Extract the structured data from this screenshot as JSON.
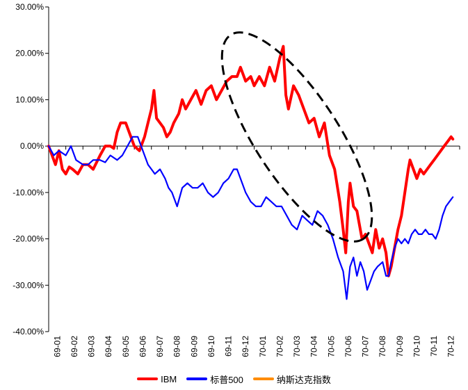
{
  "chart_data": {
    "type": "line",
    "title": "",
    "xlabel": "",
    "ylabel": "",
    "ylim": [
      -0.4,
      0.3
    ],
    "y_ticks": [
      "30.00%",
      "20.00%",
      "10.00%",
      "0.00%",
      "-10.00%",
      "-20.00%",
      "-30.00%",
      "-40.00%"
    ],
    "x_ticks": [
      "69-01",
      "69-02",
      "69-03",
      "69-04",
      "69-05",
      "69-06",
      "69-07",
      "69-08",
      "69-09",
      "69-10",
      "69-11",
      "69-12",
      "70-01",
      "70-02",
      "70-03",
      "70-04",
      "70-05",
      "70-06",
      "70-07",
      "70-08",
      "70-09",
      "70-10",
      "70-11",
      "70-12"
    ],
    "grid": false,
    "legend_position": "bottom",
    "series": [
      {
        "name": "IBM",
        "color": "#FF0000",
        "values": [
          [
            0.0,
            0.0
          ],
          [
            0.2,
            -0.02
          ],
          [
            0.4,
            -0.04
          ],
          [
            0.6,
            -0.01
          ],
          [
            0.8,
            -0.05
          ],
          [
            1.0,
            -0.06
          ],
          [
            1.2,
            -0.045
          ],
          [
            1.4,
            -0.05
          ],
          [
            1.7,
            -0.06
          ],
          [
            2.0,
            -0.04
          ],
          [
            2.3,
            -0.04
          ],
          [
            2.6,
            -0.05
          ],
          [
            3.0,
            -0.02
          ],
          [
            3.3,
            0.0
          ],
          [
            3.6,
            0.0
          ],
          [
            3.8,
            -0.005
          ],
          [
            4.0,
            0.03
          ],
          [
            4.2,
            0.05
          ],
          [
            4.5,
            0.05
          ],
          [
            4.8,
            0.02
          ],
          [
            5.0,
            0.0
          ],
          [
            5.3,
            -0.01
          ],
          [
            5.6,
            0.02
          ],
          [
            5.8,
            0.05
          ],
          [
            6.0,
            0.08
          ],
          [
            6.15,
            0.12
          ],
          [
            6.3,
            0.06
          ],
          [
            6.5,
            0.05
          ],
          [
            6.7,
            0.04
          ],
          [
            6.9,
            0.02
          ],
          [
            7.1,
            0.03
          ],
          [
            7.3,
            0.05
          ],
          [
            7.6,
            0.07
          ],
          [
            7.8,
            0.1
          ],
          [
            8.0,
            0.08
          ],
          [
            8.3,
            0.1
          ],
          [
            8.6,
            0.12
          ],
          [
            8.9,
            0.09
          ],
          [
            9.2,
            0.12
          ],
          [
            9.5,
            0.13
          ],
          [
            9.8,
            0.1
          ],
          [
            10.1,
            0.12
          ],
          [
            10.4,
            0.14
          ],
          [
            10.7,
            0.15
          ],
          [
            11.0,
            0.15
          ],
          [
            11.2,
            0.17
          ],
          [
            11.5,
            0.14
          ],
          [
            11.8,
            0.15
          ],
          [
            12.0,
            0.13
          ],
          [
            12.3,
            0.15
          ],
          [
            12.6,
            0.13
          ],
          [
            12.9,
            0.17
          ],
          [
            13.2,
            0.14
          ],
          [
            13.5,
            0.19
          ],
          [
            13.7,
            0.215
          ],
          [
            13.85,
            0.11
          ],
          [
            14.0,
            0.08
          ],
          [
            14.3,
            0.13
          ],
          [
            14.6,
            0.11
          ],
          [
            14.9,
            0.08
          ],
          [
            15.2,
            0.05
          ],
          [
            15.5,
            0.06
          ],
          [
            15.8,
            0.02
          ],
          [
            16.1,
            0.05
          ],
          [
            16.4,
            -0.02
          ],
          [
            16.7,
            -0.05
          ],
          [
            17.0,
            -0.12
          ],
          [
            17.2,
            -0.18
          ],
          [
            17.35,
            -0.23
          ],
          [
            17.5,
            -0.12
          ],
          [
            17.6,
            -0.08
          ],
          [
            17.8,
            -0.13
          ],
          [
            18.0,
            -0.14
          ],
          [
            18.1,
            -0.16
          ],
          [
            18.3,
            -0.2
          ],
          [
            18.5,
            -0.19
          ],
          [
            18.7,
            -0.21
          ],
          [
            18.9,
            -0.23
          ],
          [
            19.1,
            -0.18
          ],
          [
            19.3,
            -0.22
          ],
          [
            19.5,
            -0.2
          ],
          [
            19.7,
            -0.23
          ],
          [
            19.85,
            -0.28
          ],
          [
            20.0,
            -0.26
          ],
          [
            20.2,
            -0.22
          ],
          [
            20.4,
            -0.18
          ],
          [
            20.6,
            -0.15
          ],
          [
            20.8,
            -0.1
          ],
          [
            21.0,
            -0.05
          ],
          [
            21.1,
            -0.03
          ],
          [
            21.3,
            -0.05
          ],
          [
            21.5,
            -0.07
          ],
          [
            21.7,
            -0.05
          ],
          [
            21.9,
            -0.06
          ],
          [
            22.1,
            -0.05
          ],
          [
            22.3,
            -0.04
          ],
          [
            22.5,
            -0.03
          ],
          [
            22.7,
            -0.02
          ],
          [
            22.9,
            -0.01
          ],
          [
            23.1,
            0.0
          ],
          [
            23.3,
            0.01
          ],
          [
            23.5,
            0.02
          ],
          [
            23.6,
            0.015
          ]
        ]
      },
      {
        "name": "标普500",
        "color": "#0000FF",
        "values": [
          [
            0.0,
            0.0
          ],
          [
            0.3,
            -0.02
          ],
          [
            0.6,
            -0.01
          ],
          [
            1.0,
            -0.02
          ],
          [
            1.3,
            0.0
          ],
          [
            1.6,
            -0.03
          ],
          [
            2.0,
            -0.04
          ],
          [
            2.3,
            -0.04
          ],
          [
            2.6,
            -0.03
          ],
          [
            3.0,
            -0.03
          ],
          [
            3.3,
            -0.035
          ],
          [
            3.6,
            -0.02
          ],
          [
            4.0,
            -0.03
          ],
          [
            4.3,
            -0.02
          ],
          [
            4.6,
            0.0
          ],
          [
            4.9,
            0.02
          ],
          [
            5.2,
            0.02
          ],
          [
            5.5,
            -0.01
          ],
          [
            5.8,
            -0.04
          ],
          [
            6.0,
            -0.05
          ],
          [
            6.2,
            -0.06
          ],
          [
            6.5,
            -0.05
          ],
          [
            6.8,
            -0.07
          ],
          [
            7.0,
            -0.09
          ],
          [
            7.2,
            -0.1
          ],
          [
            7.5,
            -0.13
          ],
          [
            7.8,
            -0.09
          ],
          [
            8.1,
            -0.08
          ],
          [
            8.4,
            -0.09
          ],
          [
            8.7,
            -0.09
          ],
          [
            9.0,
            -0.08
          ],
          [
            9.3,
            -0.1
          ],
          [
            9.6,
            -0.11
          ],
          [
            9.9,
            -0.1
          ],
          [
            10.2,
            -0.08
          ],
          [
            10.5,
            -0.07
          ],
          [
            10.8,
            -0.05
          ],
          [
            11.0,
            -0.05
          ],
          [
            11.2,
            -0.07
          ],
          [
            11.5,
            -0.1
          ],
          [
            11.8,
            -0.12
          ],
          [
            12.1,
            -0.13
          ],
          [
            12.4,
            -0.13
          ],
          [
            12.7,
            -0.11
          ],
          [
            13.0,
            -0.12
          ],
          [
            13.3,
            -0.13
          ],
          [
            13.6,
            -0.13
          ],
          [
            13.9,
            -0.15
          ],
          [
            14.2,
            -0.17
          ],
          [
            14.5,
            -0.18
          ],
          [
            14.8,
            -0.15
          ],
          [
            15.1,
            -0.16
          ],
          [
            15.4,
            -0.17
          ],
          [
            15.7,
            -0.14
          ],
          [
            16.0,
            -0.15
          ],
          [
            16.3,
            -0.17
          ],
          [
            16.6,
            -0.2
          ],
          [
            16.9,
            -0.24
          ],
          [
            17.2,
            -0.27
          ],
          [
            17.4,
            -0.33
          ],
          [
            17.6,
            -0.26
          ],
          [
            17.8,
            -0.24
          ],
          [
            18.0,
            -0.28
          ],
          [
            18.2,
            -0.25
          ],
          [
            18.4,
            -0.27
          ],
          [
            18.6,
            -0.31
          ],
          [
            18.8,
            -0.29
          ],
          [
            19.0,
            -0.27
          ],
          [
            19.2,
            -0.26
          ],
          [
            19.5,
            -0.25
          ],
          [
            19.7,
            -0.28
          ],
          [
            19.85,
            -0.28
          ],
          [
            20.0,
            -0.25
          ],
          [
            20.2,
            -0.22
          ],
          [
            20.4,
            -0.2
          ],
          [
            20.6,
            -0.21
          ],
          [
            20.8,
            -0.2
          ],
          [
            21.0,
            -0.21
          ],
          [
            21.2,
            -0.19
          ],
          [
            21.4,
            -0.18
          ],
          [
            21.6,
            -0.19
          ],
          [
            21.8,
            -0.19
          ],
          [
            22.0,
            -0.18
          ],
          [
            22.2,
            -0.19
          ],
          [
            22.4,
            -0.19
          ],
          [
            22.6,
            -0.2
          ],
          [
            22.8,
            -0.18
          ],
          [
            23.0,
            -0.15
          ],
          [
            23.2,
            -0.13
          ],
          [
            23.4,
            -0.12
          ],
          [
            23.6,
            -0.11
          ]
        ]
      },
      {
        "name": "纳斯达克指数",
        "color": "#FF8C00",
        "values": []
      }
    ],
    "annotations": [
      {
        "type": "dashed-ellipse",
        "note": ""
      }
    ]
  }
}
